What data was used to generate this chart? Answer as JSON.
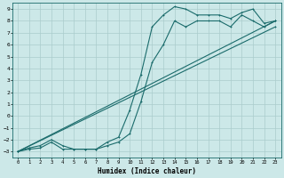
{
  "xlabel": "Humidex (Indice chaleur)",
  "bg_color": "#cce8e8",
  "grid_color": "#aacccc",
  "line_color": "#1a6b6b",
  "xlim": [
    -0.5,
    23.5
  ],
  "ylim": [
    -3.5,
    9.5
  ],
  "xticks": [
    0,
    1,
    2,
    3,
    4,
    5,
    6,
    7,
    8,
    9,
    10,
    11,
    12,
    13,
    14,
    15,
    16,
    17,
    18,
    19,
    20,
    21,
    22,
    23
  ],
  "yticks": [
    -3,
    -2,
    -1,
    0,
    1,
    2,
    3,
    4,
    5,
    6,
    7,
    8,
    9
  ],
  "line1_x": [
    0,
    1,
    2,
    3,
    4,
    5,
    6,
    7,
    8,
    9,
    10,
    11,
    12,
    13,
    14,
    15,
    16,
    17,
    18,
    19,
    20,
    21,
    22,
    23
  ],
  "line1_y": [
    -3,
    -2.7,
    -2.5,
    -2,
    -2.5,
    -2.8,
    -2.8,
    -2.8,
    -2.2,
    -1.8,
    0.5,
    3.5,
    7.5,
    8.5,
    9.2,
    9,
    8.5,
    8.5,
    8.5,
    8.2,
    8.7,
    9,
    7.8,
    8
  ],
  "line2_x": [
    0,
    1,
    2,
    3,
    4,
    5,
    6,
    7,
    8,
    9,
    10,
    11,
    12,
    13,
    14,
    15,
    16,
    17,
    18,
    19,
    20,
    21,
    22,
    23
  ],
  "line2_y": [
    -3,
    -2.8,
    -2.7,
    -2.2,
    -2.8,
    -2.8,
    -2.8,
    -2.8,
    -2.5,
    -2.2,
    -1.5,
    1.2,
    4.5,
    6,
    8,
    7.5,
    8,
    8,
    8,
    7.5,
    8.5,
    8,
    7.5,
    8
  ],
  "line3_x": [
    0,
    23
  ],
  "line3_y": [
    -3,
    8
  ],
  "line4_x": [
    0,
    23
  ],
  "line4_y": [
    -3,
    7.5
  ]
}
